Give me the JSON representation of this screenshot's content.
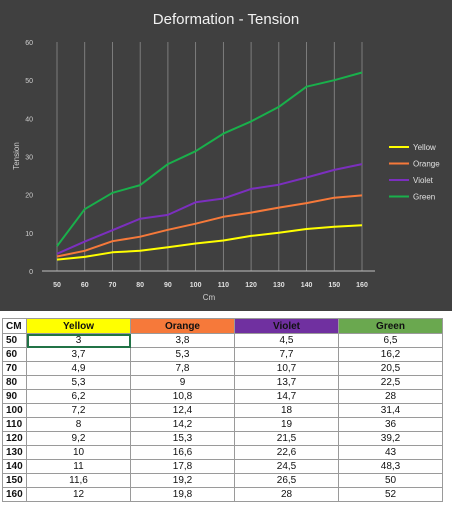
{
  "chart_data": {
    "type": "line",
    "title": "Deformation - Tension",
    "xlabel": "Cm",
    "ylabel": "Tension",
    "x": [
      50,
      60,
      70,
      80,
      90,
      100,
      110,
      120,
      130,
      140,
      150,
      160
    ],
    "ylim": [
      0,
      60
    ],
    "yticks": [
      0,
      10,
      20,
      30,
      40,
      50,
      60
    ],
    "grid": "vertical",
    "legend": "right",
    "background": "#404040",
    "series": [
      {
        "name": "Yellow",
        "color": "#ffff00",
        "values": [
          3,
          3.7,
          4.9,
          5.3,
          6.2,
          7.2,
          8,
          9.2,
          10,
          11,
          11.6,
          12
        ]
      },
      {
        "name": "Orange",
        "color": "#f6793a",
        "values": [
          3.8,
          5.3,
          7.8,
          9,
          10.8,
          12.4,
          14.2,
          15.3,
          16.6,
          17.8,
          19.2,
          19.8
        ]
      },
      {
        "name": "Violet",
        "color": "#7b2fbe",
        "values": [
          4.5,
          7.7,
          10.7,
          13.7,
          14.7,
          18,
          19,
          21.5,
          22.6,
          24.5,
          26.5,
          28
        ]
      },
      {
        "name": "Green",
        "color": "#19b04b",
        "values": [
          6.5,
          16.2,
          20.5,
          22.5,
          28,
          31.4,
          36,
          39.2,
          43,
          48.3,
          50,
          52
        ]
      }
    ]
  },
  "table": {
    "headers": [
      "CM",
      "Yellow",
      "Orange",
      "Violet",
      "Green"
    ],
    "header_colors": [
      "#ffffff",
      "#ffff00",
      "#f6793a",
      "#7030a0",
      "#6aa84f"
    ],
    "rows": [
      [
        "50",
        "3",
        "3,8",
        "4,5",
        "6,5"
      ],
      [
        "60",
        "3,7",
        "5,3",
        "7,7",
        "16,2"
      ],
      [
        "70",
        "4,9",
        "7,8",
        "10,7",
        "20,5"
      ],
      [
        "80",
        "5,3",
        "9",
        "13,7",
        "22,5"
      ],
      [
        "90",
        "6,2",
        "10,8",
        "14,7",
        "28"
      ],
      [
        "100",
        "7,2",
        "12,4",
        "18",
        "31,4"
      ],
      [
        "110",
        "8",
        "14,2",
        "19",
        "36"
      ],
      [
        "120",
        "9,2",
        "15,3",
        "21,5",
        "39,2"
      ],
      [
        "130",
        "10",
        "16,6",
        "22,6",
        "43"
      ],
      [
        "140",
        "11",
        "17,8",
        "24,5",
        "48,3"
      ],
      [
        "150",
        "11,6",
        "19,2",
        "26,5",
        "50"
      ],
      [
        "160",
        "12",
        "19,8",
        "28",
        "52"
      ]
    ]
  }
}
